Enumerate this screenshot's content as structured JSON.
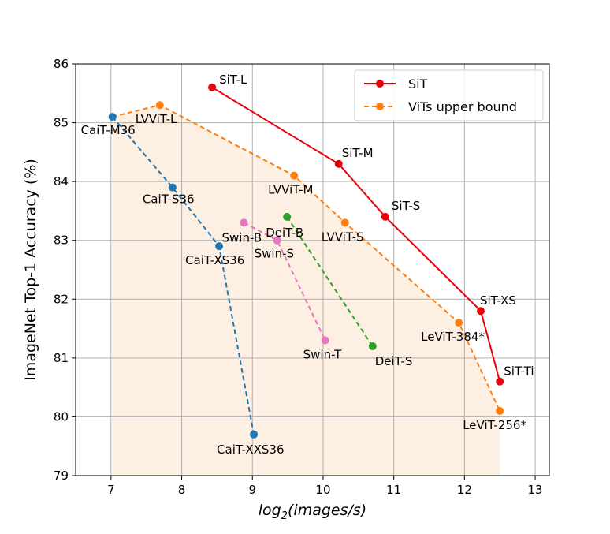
{
  "chart_data": {
    "type": "line",
    "title": "",
    "xlabel_main": "log",
    "xlabel_sub": "2",
    "xlabel_rest": "(images/s)",
    "ylabel": "ImageNet Top-1 Accuracy (%)",
    "xlim": [
      6.5,
      13.2
    ],
    "ylim": [
      79,
      86
    ],
    "xticks": [
      7,
      8,
      9,
      10,
      11,
      12,
      13
    ],
    "yticks": [
      79,
      80,
      81,
      82,
      83,
      84,
      85,
      86
    ],
    "grid": true,
    "legend_position": "top-right",
    "colors": {
      "sit": "#e8000b",
      "upper": "#ff7f0e",
      "cait": "#1f77b4",
      "deit": "#2ca02c",
      "swin": "#e377c2",
      "fill": "#fdefe1"
    },
    "series": [
      {
        "key": "sit",
        "name": "SiT",
        "in_legend": true,
        "style": "solid",
        "color": "#e8000b",
        "points": [
          {
            "x": 8.43,
            "y": 85.6,
            "label": "SiT-L"
          },
          {
            "x": 10.22,
            "y": 84.3,
            "label": "SiT-M"
          },
          {
            "x": 10.88,
            "y": 83.4,
            "label": "SiT-S"
          },
          {
            "x": 12.23,
            "y": 81.8,
            "label": "SiT-XS"
          },
          {
            "x": 12.5,
            "y": 80.6,
            "label": "SiT-Ti"
          }
        ]
      },
      {
        "key": "upper",
        "name": "ViTs upper bound",
        "in_legend": true,
        "style": "dashed",
        "color": "#ff7f0e",
        "points": [
          {
            "x": 7.02,
            "y": 85.1,
            "label": ""
          },
          {
            "x": 7.69,
            "y": 85.3,
            "label": "LVViT-L"
          },
          {
            "x": 9.59,
            "y": 84.1,
            "label": "LVViT-M"
          },
          {
            "x": 10.31,
            "y": 83.3,
            "label": "LVViT-S"
          },
          {
            "x": 11.92,
            "y": 81.6,
            "label": "LeViT-384*"
          },
          {
            "x": 12.5,
            "y": 80.1,
            "label": "LeViT-256*"
          }
        ]
      },
      {
        "key": "cait",
        "name": "",
        "in_legend": false,
        "style": "dashed",
        "color": "#1f77b4",
        "points": [
          {
            "x": 7.02,
            "y": 85.1,
            "label": "CaiT-M36"
          },
          {
            "x": 7.87,
            "y": 83.9,
            "label": "CaiT-S36"
          },
          {
            "x": 8.53,
            "y": 82.9,
            "label": "CaiT-XS36"
          },
          {
            "x": 9.02,
            "y": 79.7,
            "label": "CaiT-XXS36"
          }
        ]
      },
      {
        "key": "swin",
        "name": "",
        "in_legend": false,
        "style": "dashed",
        "color": "#e377c2",
        "points": [
          {
            "x": 8.88,
            "y": 83.3,
            "label": "Swin-B"
          },
          {
            "x": 9.35,
            "y": 83.0,
            "label": "Swin-S"
          },
          {
            "x": 10.03,
            "y": 81.3,
            "label": "Swin-T"
          }
        ]
      },
      {
        "key": "deit",
        "name": "",
        "in_legend": false,
        "style": "dashed",
        "color": "#2ca02c",
        "points": [
          {
            "x": 9.49,
            "y": 83.4,
            "label": "DeiT-B"
          },
          {
            "x": 10.7,
            "y": 81.2,
            "label": "DeiT-S"
          }
        ]
      }
    ]
  }
}
